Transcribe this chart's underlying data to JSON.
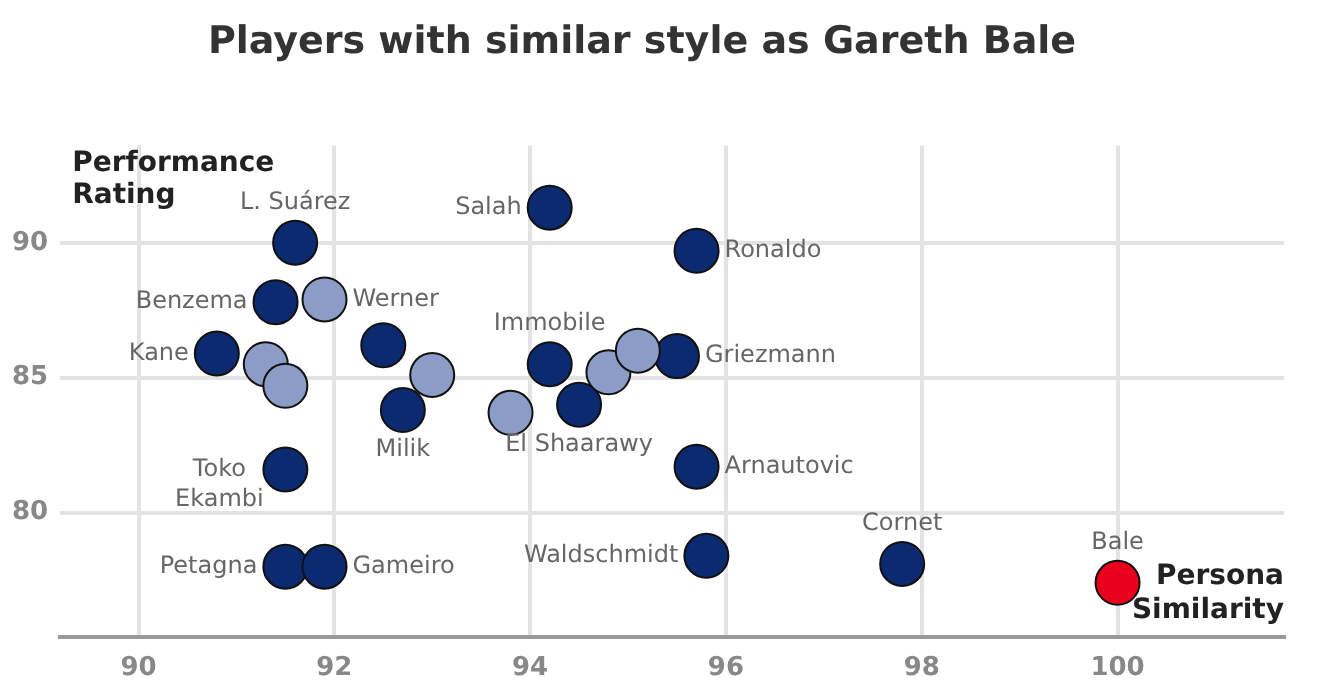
{
  "chart_data": {
    "type": "scatter",
    "title": "Players with similar style as Gareth Bale",
    "xlabel": "Persona Similarity",
    "ylabel": "Performance Rating",
    "xlim": [
      89.2,
      101.7
    ],
    "ylim": [
      75.4,
      93.6
    ],
    "xticks": [
      90,
      92,
      94,
      96,
      98,
      100
    ],
    "yticks": [
      80,
      85,
      90
    ],
    "grid": true,
    "legend": false,
    "marker": "circle",
    "series": [
      {
        "color": "#8b9dc6",
        "x": [
          91.9,
          91.3,
          91.5,
          93.0,
          93.8,
          94.8,
          95.1
        ],
        "values": [
          87.9,
          85.5,
          84.7,
          85.1,
          83.7,
          85.2,
          86.0
        ]
      },
      {
        "color": "#0b2a6f",
        "x": [
          91.6,
          94.2,
          95.7,
          91.4,
          90.8,
          92.5,
          92.7,
          94.2,
          94.5,
          95.5,
          95.7,
          91.5,
          91.5,
          91.9,
          95.8,
          97.8
        ],
        "values": [
          90.0,
          91.3,
          89.7,
          87.8,
          85.9,
          86.2,
          83.8,
          85.5,
          84.0,
          85.8,
          81.7,
          81.6,
          78.0,
          78.0,
          78.4,
          78.1
        ]
      },
      {
        "color": "#e8001c",
        "x": [
          100.0
        ],
        "values": [
          77.4
        ]
      }
    ],
    "annotations": [
      {
        "text": "L. Suárez",
        "x": 91.6,
        "y": 90.0
      },
      {
        "text": "Salah",
        "x": 94.2,
        "y": 91.3
      },
      {
        "text": "Ronaldo",
        "x": 95.7,
        "y": 89.7
      },
      {
        "text": "Benzema",
        "x": 91.4,
        "y": 87.8
      },
      {
        "text": "Werner",
        "x": 91.9,
        "y": 87.9
      },
      {
        "text": "Kane",
        "x": 90.8,
        "y": 85.9
      },
      {
        "text": "Immobile",
        "x": 94.2,
        "y": 85.5
      },
      {
        "text": "Griezmann",
        "x": 95.5,
        "y": 85.8
      },
      {
        "text": "Milik",
        "x": 92.7,
        "y": 83.8
      },
      {
        "text": "El Shaarawy",
        "x": 94.5,
        "y": 84.0
      },
      {
        "text": "Toko Ekambi",
        "x": 91.5,
        "y": 81.6
      },
      {
        "text": "Arnautovic",
        "x": 95.7,
        "y": 81.7
      },
      {
        "text": "Petagna",
        "x": 91.5,
        "y": 78.0
      },
      {
        "text": "Gameiro",
        "x": 91.9,
        "y": 78.0
      },
      {
        "text": "Waldschmidt",
        "x": 95.8,
        "y": 78.4
      },
      {
        "text": "Cornet",
        "x": 97.8,
        "y": 78.1
      },
      {
        "text": "Bale",
        "x": 100.0,
        "y": 77.4
      }
    ]
  }
}
